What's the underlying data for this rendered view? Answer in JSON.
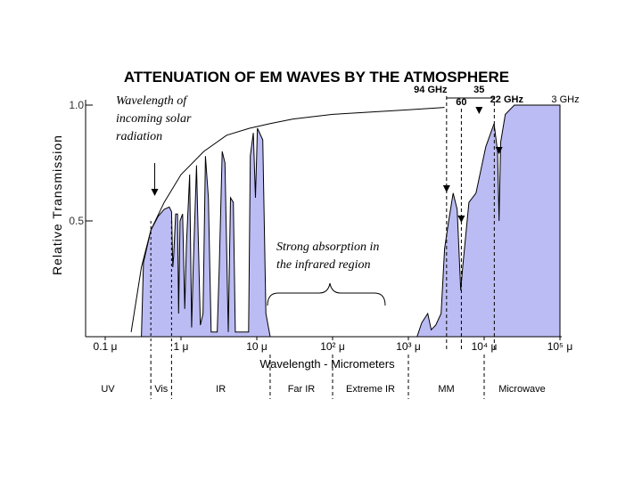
{
  "chart_data": {
    "type": "area",
    "title": "ATTENUATION OF EM WAVES BY THE ATMOSPHERE",
    "xlabel": "Wavelength - Micrometers",
    "ylabel": "Relative Transmission",
    "xscale": "log",
    "xlim": [
      0.1,
      100000
    ],
    "ylim": [
      0,
      1.0
    ],
    "x_ticks": [
      {
        "value": 0.1,
        "label": "0.1 μ"
      },
      {
        "value": 1,
        "label": "1 μ"
      },
      {
        "value": 10,
        "label": "10 μ"
      },
      {
        "value": 100,
        "label": "10² μ"
      },
      {
        "value": 1000,
        "label": "10³ μ"
      },
      {
        "value": 10000,
        "label": "10⁴ μ"
      },
      {
        "value": 100000,
        "label": "10⁵ μ"
      }
    ],
    "y_ticks": [
      {
        "value": 0.5,
        "label": "0.5"
      },
      {
        "value": 1.0,
        "label": "1.0"
      }
    ],
    "fill_color": "#bcbcf4",
    "series": [
      {
        "name": "transmission",
        "points": [
          [
            0.3,
            0
          ],
          [
            0.32,
            0.32
          ],
          [
            0.4,
            0.46
          ],
          [
            0.5,
            0.52
          ],
          [
            0.6,
            0.55
          ],
          [
            0.7,
            0.56
          ],
          [
            0.75,
            0.54
          ],
          [
            0.78,
            0.3
          ],
          [
            0.8,
            0.35
          ],
          [
            0.85,
            0.53
          ],
          [
            0.9,
            0.53
          ],
          [
            0.93,
            0.1
          ],
          [
            0.97,
            0.5
          ],
          [
            1.05,
            0.53
          ],
          [
            1.12,
            0.12
          ],
          [
            1.18,
            0.4
          ],
          [
            1.3,
            0.7
          ],
          [
            1.38,
            0.04
          ],
          [
            1.45,
            0.3
          ],
          [
            1.6,
            0.74
          ],
          [
            1.8,
            0.05
          ],
          [
            1.95,
            0.1
          ],
          [
            2.1,
            0.78
          ],
          [
            2.3,
            0.6
          ],
          [
            2.5,
            0.02
          ],
          [
            3.0,
            0.02
          ],
          [
            3.2,
            0.3
          ],
          [
            3.5,
            0.8
          ],
          [
            3.8,
            0.75
          ],
          [
            4.2,
            0.02
          ],
          [
            4.5,
            0.6
          ],
          [
            4.9,
            0.58
          ],
          [
            5.2,
            0.02
          ],
          [
            7.8,
            0.02
          ],
          [
            8.2,
            0.78
          ],
          [
            9.0,
            0.88
          ],
          [
            9.6,
            0.6
          ],
          [
            10.2,
            0.9
          ],
          [
            12.0,
            0.85
          ],
          [
            13.2,
            0.1
          ],
          [
            15.0,
            0.0
          ],
          [
            1300,
            0
          ],
          [
            1500,
            0.06
          ],
          [
            1800,
            0.1
          ],
          [
            2000,
            0.03
          ],
          [
            2300,
            0.05
          ],
          [
            2700,
            0.1
          ],
          [
            3000,
            0.38
          ],
          [
            3400,
            0.5
          ],
          [
            3900,
            0.62
          ],
          [
            4400,
            0.55
          ],
          [
            4900,
            0.2
          ],
          [
            5200,
            0.3
          ],
          [
            6300,
            0.58
          ],
          [
            7800,
            0.62
          ],
          [
            10500,
            0.82
          ],
          [
            13500,
            0.92
          ],
          [
            15000,
            0.8
          ],
          [
            15700,
            0.5
          ],
          [
            16500,
            0.84
          ],
          [
            19000,
            0.96
          ],
          [
            25000,
            1.0
          ],
          [
            100000,
            1.0
          ]
        ]
      },
      {
        "name": "incoming solar radiation",
        "style": "line",
        "points": [
          [
            0.22,
            0.02
          ],
          [
            0.3,
            0.3
          ],
          [
            0.4,
            0.46
          ],
          [
            0.6,
            0.58
          ],
          [
            1,
            0.7
          ],
          [
            2,
            0.8
          ],
          [
            4,
            0.87
          ],
          [
            8,
            0.9
          ],
          [
            15,
            0.92
          ],
          [
            30,
            0.94
          ],
          [
            100,
            0.96
          ],
          [
            1000,
            0.98
          ],
          [
            3000,
            0.99
          ]
        ]
      }
    ],
    "frequency_labels": [
      {
        "label": "94 GHz",
        "value": 3190
      },
      {
        "label": "60",
        "value": 5000
      },
      {
        "label": "35",
        "value": 8570
      },
      {
        "label": "22 GHz",
        "value": 13600
      },
      {
        "label": "3 GHz",
        "value": 100000
      }
    ],
    "annotations": [
      {
        "text_lines": [
          "Wavelength of",
          "incoming solar",
          "radiation"
        ]
      },
      {
        "text_lines": [
          "Strong absorption in",
          "the infrared region"
        ]
      }
    ],
    "regions": [
      {
        "label": "UV",
        "from": 0.1,
        "to": 0.4
      },
      {
        "label": "Vis",
        "from": 0.4,
        "to": 0.75
      },
      {
        "label": "IR",
        "from": 0.75,
        "to": 15
      },
      {
        "label": "Far IR",
        "from": 15,
        "to": 100
      },
      {
        "label": "Extreme IR",
        "from": 100,
        "to": 1000
      },
      {
        "label": "MM",
        "from": 1000,
        "to": 10000
      },
      {
        "label": "Microwave",
        "from": 10000,
        "to": 100000
      }
    ],
    "grid": false,
    "legend": "none"
  }
}
